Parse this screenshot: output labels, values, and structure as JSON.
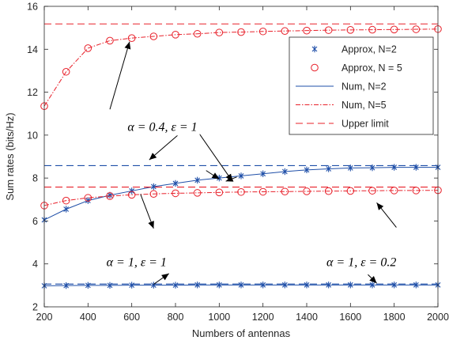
{
  "chart_data": {
    "type": "line",
    "xlabel": "Numbers of antennas",
    "ylabel": "Sum rates (bits/Hz)",
    "xlim": [
      200,
      2000
    ],
    "ylim": [
      2,
      16
    ],
    "xticks": [
      200,
      400,
      600,
      800,
      1000,
      1200,
      1400,
      1600,
      1800,
      2000
    ],
    "yticks": [
      2,
      4,
      6,
      8,
      10,
      12,
      14,
      16
    ],
    "grid": false,
    "legend_position": "top-right",
    "colors": {
      "blue": "#1f4fa8",
      "red": "#e8202a"
    },
    "legend": [
      {
        "label": "Approx, N=2",
        "style": "blue-star"
      },
      {
        "label": "Approx, N = 5",
        "style": "red-circle"
      },
      {
        "label": "Num, N=2",
        "style": "blue-solid"
      },
      {
        "label": "Num, N=5",
        "style": "red-dashdot"
      },
      {
        "label": "Upper limit",
        "style": "red-dashed"
      }
    ],
    "x": [
      200,
      300,
      400,
      500,
      600,
      700,
      800,
      900,
      1000,
      1100,
      1200,
      1300,
      1400,
      1500,
      1600,
      1700,
      1800,
      1900,
      2000
    ],
    "series": [
      {
        "group": "alpha=0.4, eps=1",
        "kind": "num",
        "N": 2,
        "style": "blue-solid",
        "values": [
          6.05,
          6.55,
          6.95,
          7.2,
          7.4,
          7.6,
          7.75,
          7.9,
          8.0,
          8.1,
          8.2,
          8.3,
          8.38,
          8.43,
          8.47,
          8.48,
          8.5,
          8.5,
          8.5
        ]
      },
      {
        "group": "alpha=0.4, eps=1",
        "kind": "approx",
        "N": 2,
        "style": "blue-star",
        "values": [
          6.05,
          6.55,
          6.95,
          7.2,
          7.4,
          7.6,
          7.75,
          7.9,
          8.0,
          8.1,
          8.2,
          8.3,
          8.38,
          8.43,
          8.47,
          8.48,
          8.5,
          8.5,
          8.5
        ]
      },
      {
        "group": "alpha=0.4, eps=1",
        "kind": "upper",
        "N": 2,
        "style": "blue-dashed",
        "values": [
          8.58,
          8.58,
          8.58,
          8.58,
          8.58,
          8.58,
          8.58,
          8.58,
          8.58,
          8.58,
          8.58,
          8.58,
          8.58,
          8.58,
          8.58,
          8.58,
          8.58,
          8.58,
          8.58
        ]
      },
      {
        "group": "alpha=0.4, eps=1",
        "kind": "num",
        "N": 5,
        "style": "red-dashdot",
        "values": [
          11.35,
          12.95,
          14.05,
          14.4,
          14.52,
          14.6,
          14.68,
          14.72,
          14.78,
          14.8,
          14.83,
          14.85,
          14.87,
          14.89,
          14.9,
          14.91,
          14.92,
          14.93,
          14.94
        ]
      },
      {
        "group": "alpha=0.4, eps=1",
        "kind": "approx",
        "N": 5,
        "style": "red-circle",
        "values": [
          11.35,
          12.95,
          14.05,
          14.4,
          14.52,
          14.6,
          14.68,
          14.72,
          14.78,
          14.8,
          14.83,
          14.85,
          14.87,
          14.89,
          14.9,
          14.91,
          14.92,
          14.93,
          14.94
        ]
      },
      {
        "group": "alpha=0.4, eps=1",
        "kind": "upper",
        "N": 5,
        "style": "red-dashed",
        "values": [
          15.18,
          15.18,
          15.18,
          15.18,
          15.18,
          15.18,
          15.18,
          15.18,
          15.18,
          15.18,
          15.18,
          15.18,
          15.18,
          15.18,
          15.18,
          15.18,
          15.18,
          15.18,
          15.18
        ]
      },
      {
        "group": "alpha=1, eps=1",
        "kind": "num",
        "N": 5,
        "style": "red-dashdot",
        "values": [
          6.72,
          6.95,
          7.08,
          7.16,
          7.22,
          7.26,
          7.29,
          7.31,
          7.33,
          7.35,
          7.36,
          7.37,
          7.38,
          7.39,
          7.4,
          7.41,
          7.42,
          7.42,
          7.43
        ]
      },
      {
        "group": "alpha=1, eps=1",
        "kind": "approx",
        "N": 5,
        "style": "red-circle",
        "values": [
          6.72,
          6.95,
          7.08,
          7.16,
          7.22,
          7.26,
          7.29,
          7.31,
          7.33,
          7.35,
          7.36,
          7.37,
          7.38,
          7.39,
          7.4,
          7.41,
          7.42,
          7.42,
          7.43
        ]
      },
      {
        "group": "alpha=1, eps=1",
        "kind": "upper",
        "N": 5,
        "style": "red-dashed",
        "values": [
          7.58,
          7.58,
          7.58,
          7.58,
          7.58,
          7.58,
          7.58,
          7.58,
          7.58,
          7.58,
          7.58,
          7.58,
          7.58,
          7.58,
          7.58,
          7.58,
          7.58,
          7.58,
          7.58
        ]
      },
      {
        "group": "alpha=1, eps=0.2",
        "kind": "num",
        "N": 2,
        "style": "blue-solid",
        "values": [
          2.98,
          2.99,
          3.0,
          3.0,
          3.01,
          3.01,
          3.01,
          3.02,
          3.02,
          3.02,
          3.02,
          3.02,
          3.02,
          3.02,
          3.02,
          3.02,
          3.02,
          3.02,
          3.02
        ]
      },
      {
        "group": "alpha=1, eps=0.2",
        "kind": "approx",
        "N": 2,
        "style": "blue-star",
        "values": [
          2.98,
          2.99,
          3.0,
          3.0,
          3.01,
          3.01,
          3.01,
          3.02,
          3.02,
          3.02,
          3.02,
          3.02,
          3.02,
          3.02,
          3.02,
          3.02,
          3.02,
          3.02,
          3.02
        ]
      },
      {
        "group": "alpha=1, eps=0.2",
        "kind": "upper",
        "N": 2,
        "style": "blue-dashed",
        "values": [
          3.06,
          3.06,
          3.06,
          3.06,
          3.06,
          3.06,
          3.06,
          3.06,
          3.06,
          3.06,
          3.06,
          3.06,
          3.06,
          3.06,
          3.06,
          3.06,
          3.06,
          3.06,
          3.06
        ]
      }
    ],
    "annotations": [
      {
        "text": "α = 0.4, ε = 1",
        "pos": [
          900,
          10.2
        ],
        "anchor": "end"
      },
      {
        "text": "α = 1, ε = 1",
        "pos": [
          760,
          3.9
        ],
        "anchor": "end"
      },
      {
        "text": "α = 1, ε = 0.2",
        "pos": [
          1650,
          3.9
        ],
        "anchor": "middle"
      }
    ],
    "arrows": [
      {
        "from": [
          500,
          11.2
        ],
        "to": [
          590,
          14.35
        ]
      },
      {
        "from": [
          845,
          10.3
        ],
        "to": [
          680,
          8.85
        ]
      },
      {
        "from": [
          910,
          10.05
        ],
        "to": [
          1060,
          7.85
        ]
      },
      {
        "from": [
          940,
          8.35
        ],
        "to": [
          1000,
          7.95
        ]
      },
      {
        "from": [
          1080,
          8.05
        ],
        "to": [
          1030,
          7.85
        ]
      },
      {
        "from": [
          640,
          7.25
        ],
        "to": [
          700,
          5.65
        ]
      },
      {
        "from": [
          700,
          3.05
        ],
        "to": [
          770,
          3.55
        ]
      },
      {
        "from": [
          1810,
          5.7
        ],
        "to": [
          1720,
          6.85
        ]
      },
      {
        "from": [
          1680,
          3.5
        ],
        "to": [
          1720,
          3.1
        ]
      }
    ]
  }
}
